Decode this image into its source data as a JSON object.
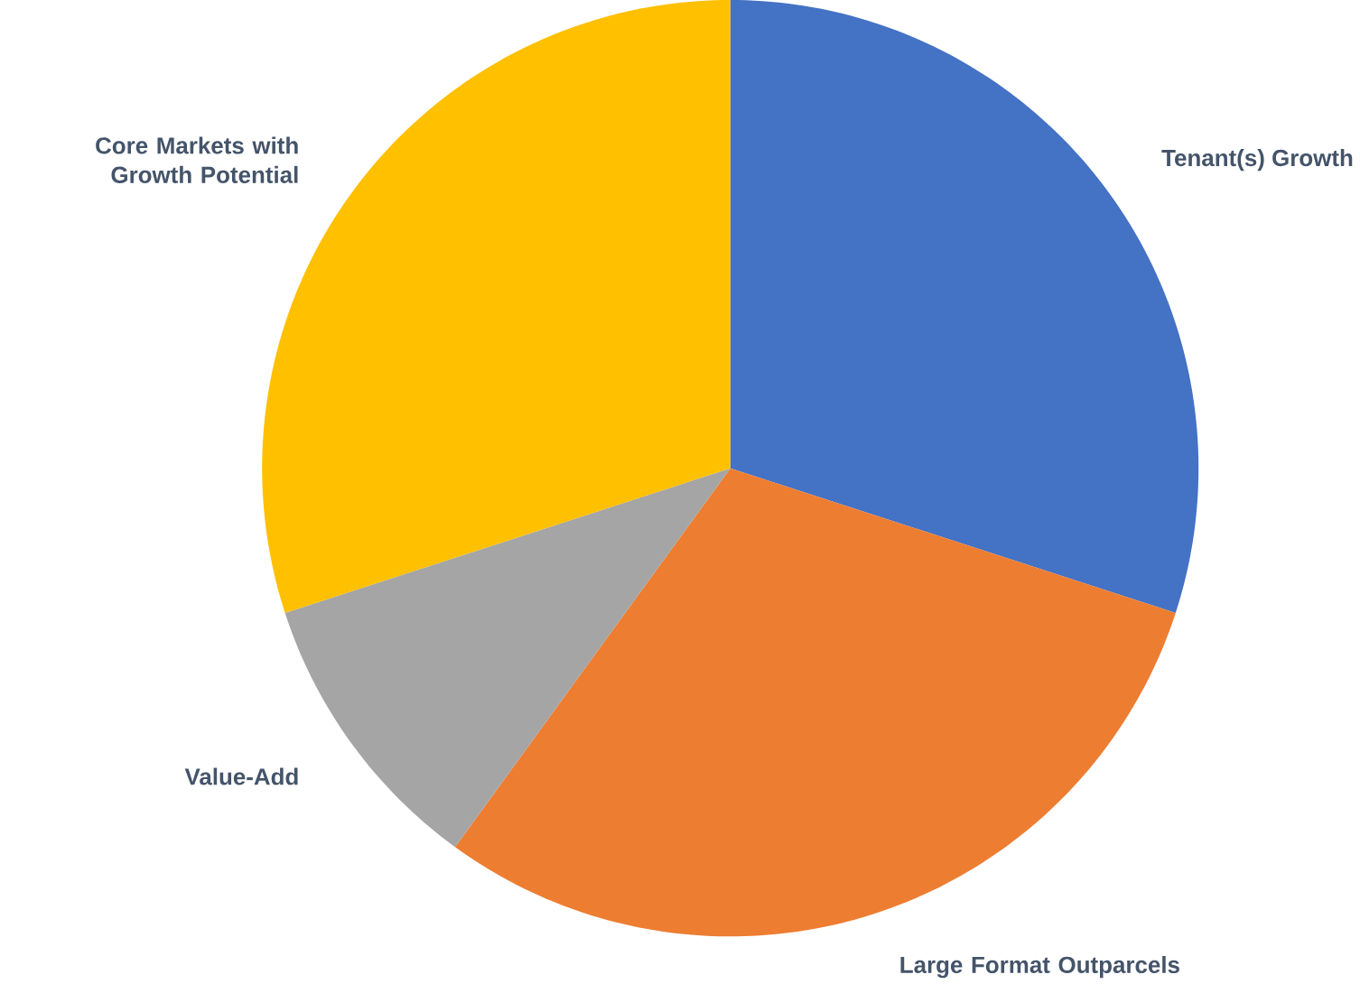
{
  "chart_data": {
    "type": "pie",
    "categories": [
      "Tenant(s) Growth",
      "Large Format Outparcels",
      "Value-Add",
      "Core Markets with Growth Potential"
    ],
    "values": [
      30,
      30,
      10,
      30
    ],
    "colors": [
      "#4472c4",
      "#ed7d31",
      "#a5a5a5",
      "#ffc000"
    ]
  }
}
